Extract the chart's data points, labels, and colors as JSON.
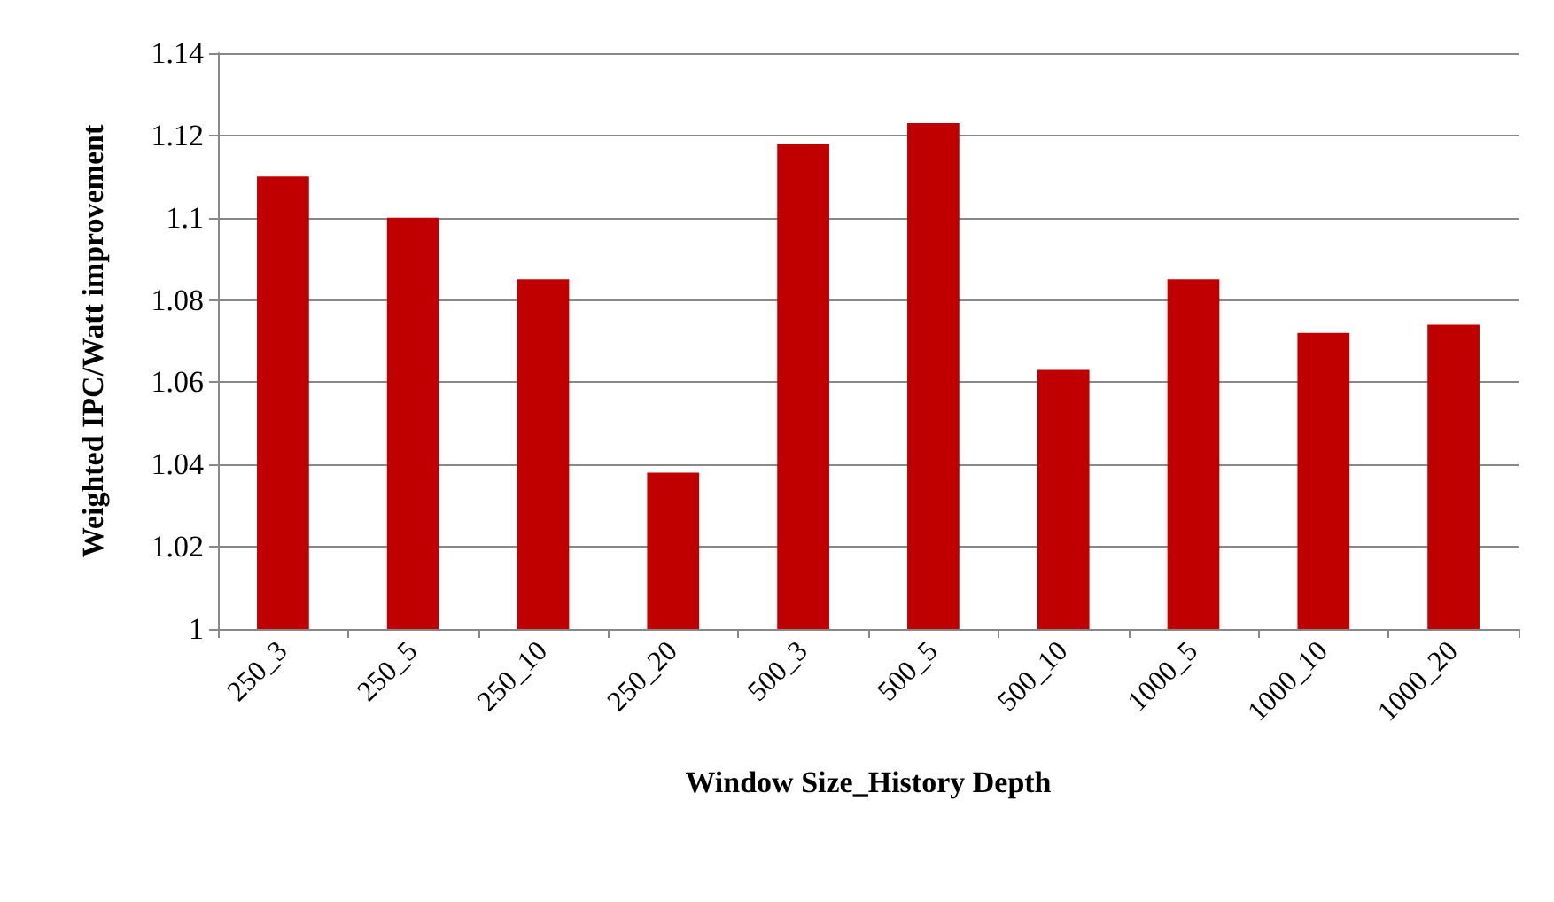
{
  "chart_data": {
    "type": "bar",
    "xlabel": "Window Size_History Depth",
    "ylabel": "Weighted IPC/Watt improvement",
    "categories": [
      "250_3",
      "250_5",
      "250_10",
      "250_20",
      "500_3",
      "500_5",
      "500_10",
      "1000_5",
      "1000_10",
      "1000_20"
    ],
    "values": [
      1.11,
      1.1,
      1.085,
      1.038,
      1.118,
      1.123,
      1.063,
      1.085,
      1.072,
      1.074
    ],
    "color": "#c00000",
    "ylim": [
      1,
      1.14
    ],
    "yticks": [
      {
        "value": 1,
        "label": "1"
      },
      {
        "value": 1.02,
        "label": "1.02"
      },
      {
        "value": 1.04,
        "label": "1.04"
      },
      {
        "value": 1.06,
        "label": "1.06"
      },
      {
        "value": 1.08,
        "label": "1.08"
      },
      {
        "value": 1.1,
        "label": "1.1"
      },
      {
        "value": 1.12,
        "label": "1.12"
      },
      {
        "value": 1.14,
        "label": "1.14"
      }
    ],
    "grid": "y"
  }
}
